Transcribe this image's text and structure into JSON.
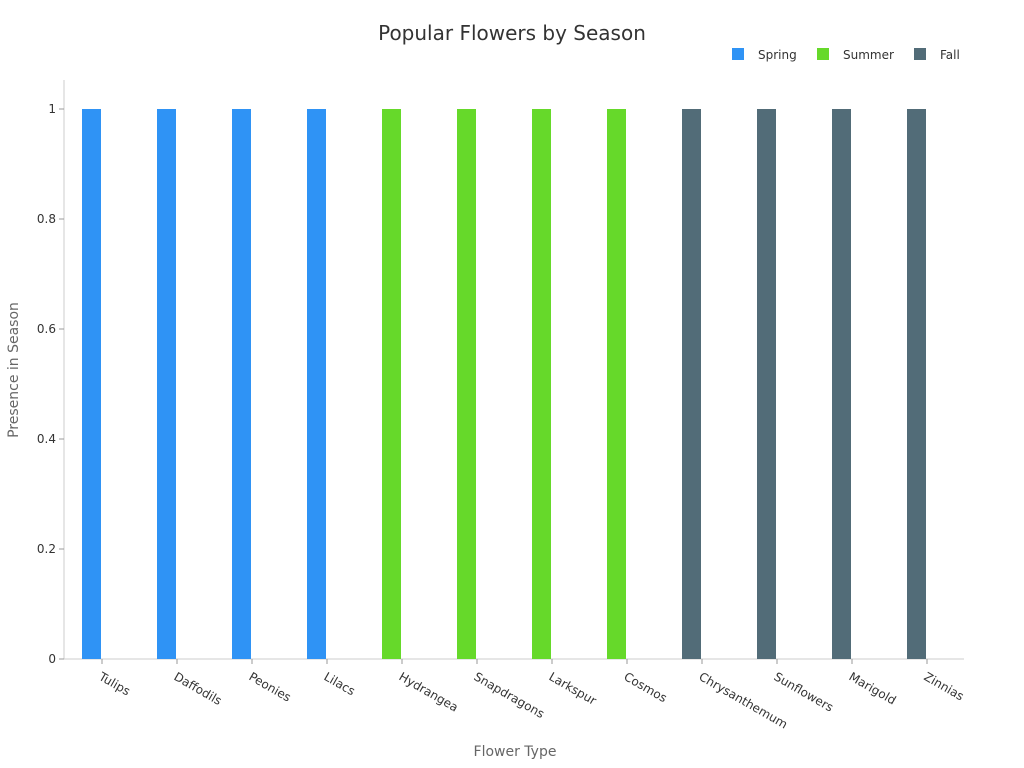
{
  "chart_data": {
    "type": "bar",
    "title": "Popular Flowers by Season",
    "xlabel": "Flower Type",
    "ylabel": "Presence in Season",
    "ylim": [
      0,
      1.0
    ],
    "yticks": [
      "0",
      "0.2",
      "0.4",
      "0.6",
      "0.8",
      "1"
    ],
    "grid": false,
    "legend_position": "top-right",
    "categories": [
      "Tulips",
      "Daffodils",
      "Peonies",
      "Lilacs",
      "Hydrangea",
      "Snapdragons",
      "Larkspur",
      "Cosmos",
      "Chrysanthemum",
      "Sunflowers",
      "Marigold",
      "Zinnias"
    ],
    "series": [
      {
        "name": "Spring",
        "color": "#2F93F5",
        "values": [
          1,
          1,
          1,
          1,
          0,
          0,
          0,
          0,
          0,
          0,
          0,
          0
        ]
      },
      {
        "name": "Summer",
        "color": "#66D92A",
        "values": [
          0,
          0,
          0,
          0,
          1,
          1,
          1,
          1,
          0,
          0,
          0,
          0
        ]
      },
      {
        "name": "Fall",
        "color": "#526C78",
        "values": [
          0,
          0,
          0,
          0,
          0,
          0,
          0,
          0,
          1,
          1,
          1,
          1
        ]
      }
    ]
  }
}
